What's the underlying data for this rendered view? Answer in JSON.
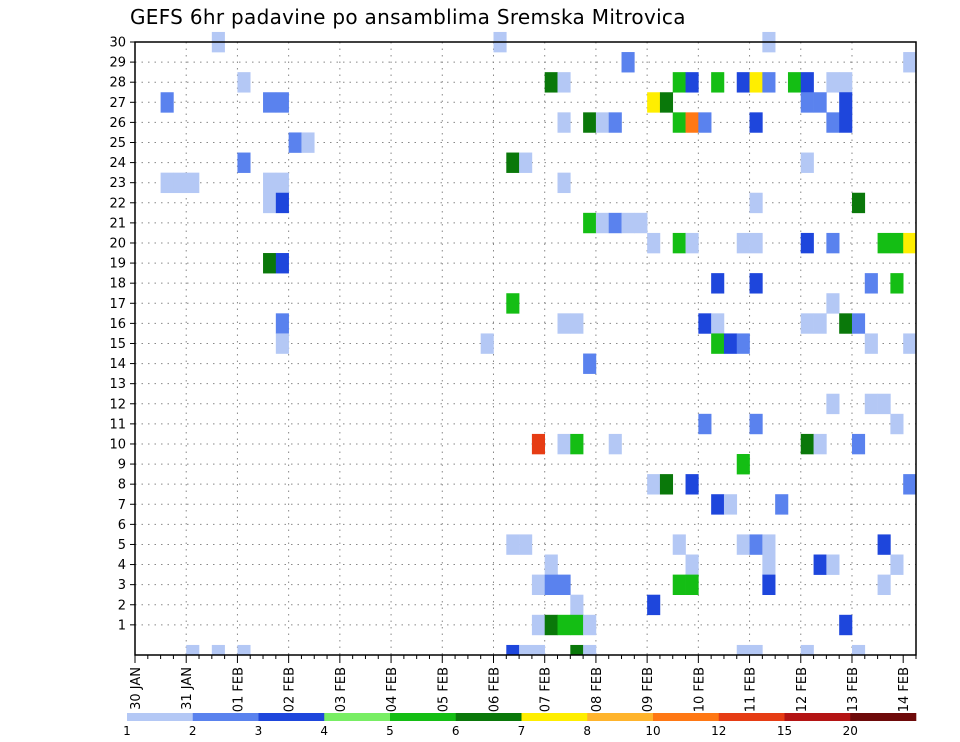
{
  "title": "GEFS 6hr padavine po ansamblima Sremska Mitrovica",
  "chart_data": {
    "type": "heatmap",
    "title": "GEFS 6hr padavine po ansamblima Sremska Mitrovica",
    "x_tick_labels": [
      "30 JAN",
      "31 JAN",
      "01 FEB",
      "02 FEB",
      "03 FEB",
      "04 FEB",
      "05 FEB",
      "06 FEB",
      "07 FEB",
      "08 FEB",
      "09 FEB",
      "10 FEB",
      "11 FEB",
      "12 FEB",
      "13 FEB",
      "14 FEB"
    ],
    "y_tick_labels": [
      "1",
      "2",
      "3",
      "4",
      "5",
      "6",
      "7",
      "8",
      "9",
      "10",
      "11",
      "12",
      "13",
      "14",
      "15",
      "16",
      "17",
      "18",
      "19",
      "20",
      "21",
      "22",
      "23",
      "24",
      "25",
      "26",
      "27",
      "28",
      "29",
      "30"
    ],
    "y_range": [
      0,
      30
    ],
    "x_unit": "6-hour steps from 30 JAN",
    "x_range": [
      0,
      61
    ],
    "grid": "dotted",
    "legend": {
      "labels": [
        "1",
        "2",
        "3",
        "4",
        "5",
        "6",
        "7",
        "8",
        "10",
        "12",
        "15",
        "20"
      ],
      "colors": [
        "#b4c8f5",
        "#5a82ee",
        "#1e46dc",
        "#78ee64",
        "#14be14",
        "#0a780a",
        "#ffee00",
        "#ffb42c",
        "#ff7814",
        "#e63c14",
        "#b41414",
        "#6e0a0a"
      ]
    },
    "cells": [
      [
        6,
        30,
        1
      ],
      [
        28,
        30,
        1
      ],
      [
        49,
        30,
        1
      ],
      [
        38,
        29,
        2
      ],
      [
        60,
        29,
        1
      ],
      [
        8,
        28,
        1
      ],
      [
        32,
        28,
        6
      ],
      [
        33,
        28,
        1
      ],
      [
        42,
        28,
        5
      ],
      [
        43,
        28,
        3
      ],
      [
        45,
        28,
        5
      ],
      [
        47,
        28,
        3
      ],
      [
        48,
        28,
        7
      ],
      [
        49,
        28,
        2
      ],
      [
        51,
        28,
        5
      ],
      [
        52,
        28,
        3
      ],
      [
        54,
        28,
        1
      ],
      [
        55,
        28,
        1
      ],
      [
        2,
        27,
        2
      ],
      [
        10,
        27,
        2
      ],
      [
        11,
        27,
        2
      ],
      [
        40,
        27,
        7
      ],
      [
        41,
        27,
        6
      ],
      [
        52,
        27,
        2
      ],
      [
        53,
        27,
        2
      ],
      [
        55,
        27,
        3
      ],
      [
        33,
        26,
        1
      ],
      [
        35,
        26,
        6
      ],
      [
        36,
        26,
        1
      ],
      [
        37,
        26,
        2
      ],
      [
        42,
        26,
        5
      ],
      [
        43,
        26,
        9
      ],
      [
        44,
        26,
        2
      ],
      [
        48,
        26,
        3
      ],
      [
        54,
        26,
        2
      ],
      [
        55,
        26,
        3
      ],
      [
        12,
        25,
        2
      ],
      [
        13,
        25,
        1
      ],
      [
        8,
        24,
        2
      ],
      [
        29,
        24,
        6
      ],
      [
        30,
        24,
        1
      ],
      [
        52,
        24,
        1
      ],
      [
        2,
        23,
        1
      ],
      [
        3,
        23,
        1
      ],
      [
        4,
        23,
        1
      ],
      [
        10,
        23,
        1
      ],
      [
        11,
        23,
        1
      ],
      [
        33,
        23,
        1
      ],
      [
        10,
        22,
        1
      ],
      [
        11,
        22,
        3
      ],
      [
        48,
        22,
        1
      ],
      [
        56,
        22,
        6
      ],
      [
        35,
        21,
        5
      ],
      [
        36,
        21,
        1
      ],
      [
        37,
        21,
        2
      ],
      [
        38,
        21,
        1
      ],
      [
        39,
        21,
        1
      ],
      [
        40,
        20,
        1
      ],
      [
        42,
        20,
        5
      ],
      [
        43,
        20,
        1
      ],
      [
        47,
        20,
        1
      ],
      [
        48,
        20,
        1
      ],
      [
        52,
        20,
        3
      ],
      [
        54,
        20,
        2
      ],
      [
        58,
        20,
        5
      ],
      [
        59,
        20,
        5
      ],
      [
        60,
        20,
        7
      ],
      [
        10,
        19,
        6
      ],
      [
        11,
        19,
        3
      ],
      [
        45,
        18,
        3
      ],
      [
        48,
        18,
        3
      ],
      [
        57,
        18,
        2
      ],
      [
        59,
        18,
        5
      ],
      [
        29,
        17,
        5
      ],
      [
        54,
        17,
        1
      ],
      [
        11,
        16,
        2
      ],
      [
        33,
        16,
        1
      ],
      [
        34,
        16,
        1
      ],
      [
        44,
        16,
        3
      ],
      [
        45,
        16,
        1
      ],
      [
        52,
        16,
        1
      ],
      [
        53,
        16,
        1
      ],
      [
        55,
        16,
        6
      ],
      [
        56,
        16,
        2
      ],
      [
        11,
        15,
        1
      ],
      [
        27,
        15,
        1
      ],
      [
        45,
        15,
        5
      ],
      [
        46,
        15,
        3
      ],
      [
        47,
        15,
        2
      ],
      [
        57,
        15,
        1
      ],
      [
        60,
        15,
        1
      ],
      [
        35,
        14,
        2
      ],
      [
        54,
        12,
        1
      ],
      [
        57,
        12,
        1
      ],
      [
        58,
        12,
        1
      ],
      [
        44,
        11,
        2
      ],
      [
        48,
        11,
        2
      ],
      [
        59,
        11,
        1
      ],
      [
        31,
        10,
        10
      ],
      [
        33,
        10,
        1
      ],
      [
        34,
        10,
        5
      ],
      [
        37,
        10,
        1
      ],
      [
        52,
        10,
        6
      ],
      [
        53,
        10,
        1
      ],
      [
        56,
        10,
        2
      ],
      [
        47,
        9,
        5
      ],
      [
        40,
        8,
        1
      ],
      [
        41,
        8,
        6
      ],
      [
        43,
        8,
        3
      ],
      [
        60,
        8,
        2
      ],
      [
        45,
        7,
        3
      ],
      [
        46,
        7,
        1
      ],
      [
        50,
        7,
        2
      ],
      [
        29,
        5,
        1
      ],
      [
        30,
        5,
        1
      ],
      [
        42,
        5,
        1
      ],
      [
        47,
        5,
        1
      ],
      [
        48,
        5,
        2
      ],
      [
        49,
        5,
        1
      ],
      [
        58,
        5,
        3
      ],
      [
        32,
        4,
        1
      ],
      [
        43,
        4,
        1
      ],
      [
        49,
        4,
        1
      ],
      [
        53,
        4,
        3
      ],
      [
        54,
        4,
        1
      ],
      [
        59,
        4,
        1
      ],
      [
        31,
        3,
        1
      ],
      [
        32,
        3,
        2
      ],
      [
        33,
        3,
        2
      ],
      [
        42,
        3,
        5
      ],
      [
        43,
        3,
        5
      ],
      [
        49,
        3,
        3
      ],
      [
        58,
        3,
        1
      ],
      [
        34,
        2,
        1
      ],
      [
        40,
        2,
        3
      ],
      [
        31,
        1,
        1
      ],
      [
        32,
        1,
        6
      ],
      [
        33,
        1,
        5
      ],
      [
        34,
        1,
        5
      ],
      [
        35,
        1,
        1
      ],
      [
        55,
        1,
        3
      ],
      [
        4,
        0,
        1
      ],
      [
        6,
        0,
        1
      ],
      [
        8,
        0,
        1
      ],
      [
        29,
        0,
        3
      ],
      [
        30,
        0,
        1
      ],
      [
        31,
        0,
        1
      ],
      [
        34,
        0,
        6
      ],
      [
        35,
        0,
        1
      ],
      [
        47,
        0,
        1
      ],
      [
        48,
        0,
        1
      ],
      [
        52,
        0,
        1
      ],
      [
        56,
        0,
        1
      ]
    ]
  }
}
